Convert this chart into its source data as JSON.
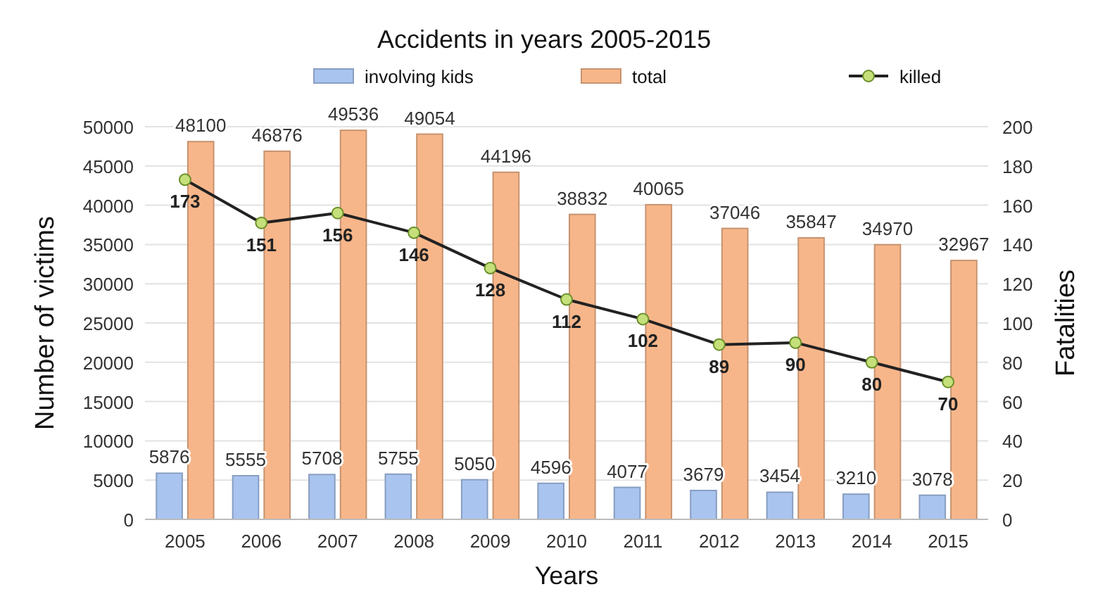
{
  "chart_data": {
    "type": "bar",
    "title": "Accidents in years 2005-2015",
    "xlabel": "Years",
    "ylabel": "Number of victims",
    "y2label": "Fatalities",
    "categories": [
      "2005",
      "2006",
      "2007",
      "2008",
      "2009",
      "2010",
      "2011",
      "2012",
      "2013",
      "2014",
      "2015"
    ],
    "series": [
      {
        "name": "involving kids",
        "color": "#a9c4ef",
        "values": [
          5876,
          5555,
          5708,
          5755,
          5050,
          4596,
          4077,
          3679,
          3454,
          3210,
          3078
        ]
      },
      {
        "name": "total",
        "color": "#f7b68a",
        "values": [
          48100,
          46876,
          49536,
          49054,
          44196,
          38832,
          40065,
          37046,
          35847,
          34970,
          32967
        ]
      },
      {
        "name": "killed",
        "type": "line",
        "axis": "y2",
        "color": "#222222",
        "marker": "circle",
        "values": [
          173,
          151,
          156,
          146,
          128,
          112,
          102,
          89,
          90,
          80,
          70
        ]
      }
    ],
    "ylim": [
      0,
      50000
    ],
    "yticks": [
      0,
      5000,
      10000,
      15000,
      20000,
      25000,
      30000,
      35000,
      40000,
      45000,
      50000
    ],
    "y2lim": [
      0,
      200
    ],
    "y2ticks": [
      0,
      20,
      40,
      60,
      80,
      100,
      120,
      140,
      160,
      180,
      200
    ],
    "grid": "y",
    "legend": "top",
    "data_labels": true
  }
}
